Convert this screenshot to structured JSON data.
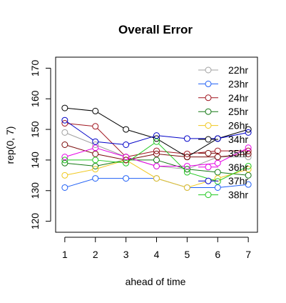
{
  "chart_data": {
    "type": "line",
    "title": "Overall Error",
    "xlabel": "ahead of time",
    "ylabel": "rep(0, 7)",
    "x": [
      1,
      2,
      3,
      4,
      5,
      6,
      7
    ],
    "xlim": [
      0.7,
      7.3
    ],
    "ylim": [
      116.4,
      173.6
    ],
    "yticks": [
      120,
      130,
      140,
      150,
      160,
      170
    ],
    "xticks": [
      1,
      2,
      3,
      4,
      5,
      6,
      7
    ],
    "grid": false,
    "legend_position": "top-right",
    "marker": "open-circle",
    "series": [
      {
        "name": "22hr",
        "color": "#a0a0a0",
        "values": [
          149,
          145,
          141,
          138,
          137,
          141,
          141
        ]
      },
      {
        "name": "23hr",
        "color": "#1f5ff5",
        "values": [
          131,
          134,
          134,
          134,
          131,
          131,
          132
        ]
      },
      {
        "name": "24hr",
        "color": "#a0141e",
        "values": [
          152,
          151,
          141,
          143,
          142,
          143,
          143
        ]
      },
      {
        "name": "25hr",
        "color": "#147814",
        "values": [
          139,
          138,
          140,
          140,
          137,
          136,
          135
        ]
      },
      {
        "name": "26hr",
        "color": "#f0c81e",
        "values": [
          135,
          137,
          140,
          134,
          131,
          134,
          137
        ]
      },
      {
        "name": "34hr",
        "color": "#000000",
        "values": [
          157,
          156,
          150,
          147,
          141,
          147,
          150
        ]
      },
      {
        "name": "35hr",
        "color": "#7a0a0a",
        "values": [
          145,
          142,
          140,
          142,
          141,
          141,
          142
        ]
      },
      {
        "name": "36hr",
        "color": "#e600e6",
        "values": [
          141,
          144,
          141,
          138,
          138,
          139,
          144
        ]
      },
      {
        "name": "37hr",
        "color": "#0000c8",
        "values": [
          153,
          146,
          145,
          148,
          147,
          147,
          149
        ]
      },
      {
        "name": "38hr",
        "color": "#1ec81e",
        "values": [
          140,
          140,
          139,
          146,
          136,
          133,
          138
        ]
      }
    ]
  }
}
